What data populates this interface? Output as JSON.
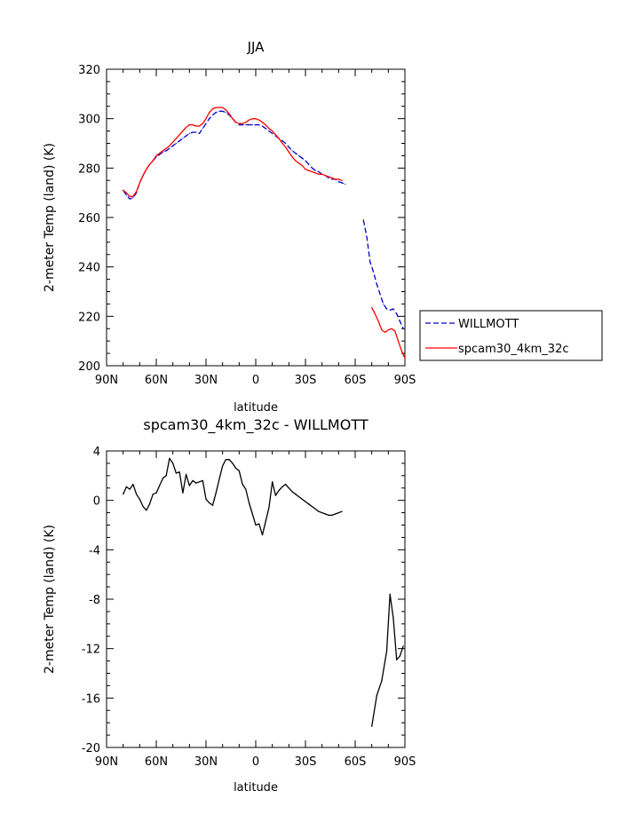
{
  "chart_data": [
    {
      "type": "line",
      "title": "JJA",
      "xlabel": "latitude",
      "ylabel": "2-meter Temp (land) (K)",
      "xlim": [
        90,
        -90
      ],
      "ylim": [
        200,
        320
      ],
      "xticks": [
        90,
        60,
        30,
        0,
        -30,
        -60,
        -90
      ],
      "xtick_labels": [
        "90N",
        "60N",
        "30N",
        "0",
        "30S",
        "60S",
        "90S"
      ],
      "yticks": [
        200,
        220,
        240,
        260,
        280,
        300,
        320
      ],
      "ytick_labels": [
        "200",
        "220",
        "240",
        "260",
        "280",
        "300",
        "320"
      ],
      "legend_position": "right",
      "series": [
        {
          "name": "WILLMOTT",
          "color": "#0000cc",
          "dash": "dashed",
          "segments": [
            {
              "x": [
                80,
                78,
                76,
                74,
                72,
                70,
                68,
                66,
                64,
                62,
                60,
                58,
                56,
                54,
                52,
                50,
                48,
                46,
                44,
                42,
                40,
                38,
                36,
                34,
                32,
                30,
                28,
                26,
                24,
                22,
                20,
                18,
                16,
                14,
                12,
                10,
                8,
                6,
                4,
                2,
                0,
                -2,
                -4,
                -6,
                -8,
                -10,
                -12,
                -14,
                -16,
                -18,
                -20,
                -22,
                -24,
                -26,
                -28,
                -30,
                -32,
                -34,
                -36,
                -38,
                -40,
                -42,
                -44,
                -46,
                -48,
                -50,
                -52,
                -54
              ],
              "y": [
                271,
                269,
                267.5,
                268,
                270,
                274,
                277,
                279.5,
                281.5,
                283,
                284.5,
                285.5,
                286.5,
                287,
                288,
                289,
                290,
                291,
                292,
                293,
                294,
                294.5,
                294.5,
                294,
                296,
                298,
                300,
                301.5,
                302.5,
                303,
                303,
                302.5,
                301.5,
                300,
                298.5,
                297.5,
                297.5,
                297.5,
                297.5,
                297.5,
                297.5,
                297.5,
                297,
                296,
                295,
                294,
                293,
                292,
                291,
                290,
                288.5,
                287,
                286,
                285,
                284,
                283,
                281.5,
                280,
                279,
                278.5,
                277.5,
                277,
                276,
                275.5,
                275.5,
                274.5,
                274,
                273.5
              ]
            },
            {
              "x": [
                -65,
                -67,
                -69,
                -71,
                -73,
                -75,
                -77,
                -79,
                -81,
                -83,
                -85,
                -87,
                -89
              ],
              "y": [
                259,
                252,
                242,
                238,
                233,
                229,
                225,
                223,
                222.5,
                223,
                221,
                218,
                215
              ]
            }
          ]
        },
        {
          "name": "spcam30_4km_32c",
          "color": "#ff0000",
          "dash": "solid",
          "segments": [
            {
              "x": [
                80,
                78,
                76,
                74,
                72,
                70,
                68,
                66,
                64,
                62,
                60,
                58,
                56,
                54,
                52,
                50,
                48,
                46,
                44,
                42,
                40,
                38,
                36,
                34,
                32,
                30,
                28,
                26,
                24,
                22,
                20,
                18,
                16,
                14,
                12,
                10,
                8,
                6,
                4,
                2,
                0,
                -2,
                -4,
                -6,
                -8,
                -10,
                -12,
                -14,
                -16,
                -18,
                -20,
                -22,
                -24,
                -26,
                -28,
                -30,
                -32,
                -34,
                -36,
                -38,
                -40,
                -42,
                -44,
                -46,
                -48,
                -50,
                -52
              ],
              "y": [
                271,
                270,
                268.5,
                268.5,
                270.5,
                274,
                277,
                279.5,
                281.5,
                283,
                285,
                286,
                287,
                288,
                289,
                290.5,
                292,
                293.5,
                295,
                296.5,
                297.5,
                297.5,
                297,
                297,
                298,
                300,
                302.5,
                304,
                304.5,
                304.5,
                304.5,
                303.5,
                302,
                300,
                298.5,
                298,
                298,
                298.5,
                299.5,
                300,
                300,
                299.5,
                298.5,
                297.5,
                296,
                295,
                293.5,
                292,
                290,
                288.5,
                286.5,
                284.5,
                283,
                282,
                281,
                279.5,
                279,
                278.5,
                278,
                277.5,
                277.5,
                277,
                276.5,
                276,
                275.5,
                275.5,
                275
              ]
            },
            {
              "x": [
                -70,
                -72,
                -74,
                -76,
                -78,
                -80,
                -82,
                -84,
                -86,
                -88,
                -90
              ],
              "y": [
                223.5,
                221,
                218,
                214.5,
                213.5,
                214.5,
                215,
                214,
                210,
                206,
                203
              ]
            }
          ]
        }
      ]
    },
    {
      "type": "line",
      "title": "spcam30_4km_32c - WILLMOTT",
      "xlabel": "latitude",
      "ylabel": "2-meter Temp (land) (K)",
      "xlim": [
        90,
        -90
      ],
      "ylim": [
        -20,
        4
      ],
      "xticks": [
        90,
        60,
        30,
        0,
        -30,
        -60,
        -90
      ],
      "xtick_labels": [
        "90N",
        "60N",
        "30N",
        "0",
        "30S",
        "60S",
        "90S"
      ],
      "yticks": [
        -20,
        -16,
        -12,
        -8,
        -4,
        0,
        4
      ],
      "ytick_labels": [
        "-20",
        "-16",
        "-12",
        "-8",
        "-4",
        "0",
        "4"
      ],
      "series": [
        {
          "name": "",
          "color": "#000000",
          "dash": "solid",
          "segments": [
            {
              "x": [
                80,
                78,
                76,
                74,
                72,
                70,
                68,
                66,
                64,
                62,
                60,
                58,
                56,
                54,
                52,
                50,
                48,
                46,
                44,
                42,
                40,
                38,
                36,
                34,
                32,
                30,
                28,
                26,
                24,
                22,
                20,
                18,
                16,
                14,
                12,
                10,
                8,
                6,
                4,
                2,
                0,
                -2,
                -4,
                -6,
                -8,
                -10,
                -12,
                -14,
                -16,
                -18,
                -20,
                -22,
                -24,
                -26,
                -28,
                -30,
                -32,
                -34,
                -36,
                -38,
                -40,
                -42,
                -44,
                -46,
                -48,
                -50,
                -52
              ],
              "y": [
                0.5,
                1.1,
                0.9,
                1.3,
                0.5,
                0.1,
                -0.5,
                -0.8,
                -0.3,
                0.5,
                0.6,
                1.2,
                1.8,
                2.0,
                3.4,
                3.0,
                2.2,
                2.3,
                0.6,
                2.1,
                1.2,
                1.6,
                1.4,
                1.5,
                1.6,
                0.1,
                -0.2,
                -0.4,
                0.6,
                1.7,
                2.8,
                3.3,
                3.3,
                3.0,
                2.6,
                2.4,
                1.3,
                0.9,
                -0.2,
                -1.1,
                -2.0,
                -1.9,
                -2.8,
                -1.7,
                -0.6,
                1.5,
                0.4,
                0.8,
                1.1,
                1.3,
                1.0,
                0.7,
                0.5,
                0.3,
                0.1,
                -0.1,
                -0.3,
                -0.5,
                -0.7,
                -0.9,
                -1.0,
                -1.1,
                -1.2,
                -1.2,
                -1.1,
                -1.0,
                -0.9
              ]
            },
            {
              "x": [
                -70,
                -73,
                -76,
                -79,
                -81,
                -83,
                -85,
                -87,
                -89
              ],
              "y": [
                -18.3,
                -15.8,
                -14.6,
                -12.2,
                -7.6,
                -9.5,
                -12.9,
                -12.6,
                -11.8
              ]
            }
          ]
        }
      ]
    }
  ]
}
